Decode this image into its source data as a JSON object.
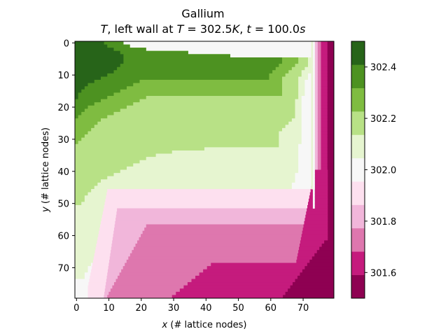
{
  "chart_data": {
    "type": "heatmap",
    "title": "Gallium",
    "subtitle": "T, left wall at T = 302.5K, t = 100.0s",
    "xlabel": "x (# lattice nodes)",
    "ylabel": "y (# lattice nodes)",
    "xlim": [
      0,
      79
    ],
    "ylim": [
      79,
      0
    ],
    "x_ticks": [
      0,
      10,
      20,
      30,
      40,
      50,
      60,
      70
    ],
    "y_ticks": [
      0,
      10,
      20,
      30,
      40,
      50,
      60,
      70
    ],
    "grid_size": [
      80,
      80
    ],
    "colorbar": {
      "levels": [
        301.5,
        301.6,
        301.7,
        301.8,
        301.9,
        302.0,
        302.1,
        302.2,
        302.3,
        302.4,
        302.5
      ],
      "colors": [
        "#8e0152",
        "#c51b7d",
        "#de77ae",
        "#f1b6da",
        "#fde0ef",
        "#f7f7f7",
        "#e6f5d0",
        "#b8e186",
        "#7fbc41",
        "#4d9221",
        "#276419"
      ],
      "tick_labels": [
        "301.6",
        "301.8",
        "302.0",
        "302.2",
        "302.4"
      ],
      "tick_values": [
        301.6,
        301.8,
        302.0,
        302.2,
        302.4
      ]
    },
    "contours": [
      {
        "level": 302.4,
        "x": [
          9,
          10,
          12,
          14,
          15,
          15,
          15,
          14,
          13,
          12,
          10,
          8,
          6,
          4,
          3,
          2,
          1,
          1
        ]
      },
      {
        "level": 302.3,
        "x": [
          15,
          17,
          22,
          35,
          48,
          64,
          64,
          63,
          62,
          61,
          60,
          60,
          20,
          18,
          16,
          14,
          12,
          10,
          8,
          6,
          4,
          3,
          2,
          1
        ]
      },
      {
        "level": 302.2,
        "x": [
          15,
          17,
          22,
          35,
          48,
          69,
          69,
          68,
          67,
          66,
          65,
          64,
          64,
          64,
          64,
          64,
          64,
          22,
          20,
          18,
          16,
          14,
          12,
          10,
          8,
          7,
          6,
          5,
          4,
          3,
          2,
          1
        ]
      },
      {
        "level": 302.1,
        "x": [
          15,
          17,
          22,
          35,
          48,
          72,
          72,
          72,
          71,
          70,
          70,
          69,
          69,
          69,
          69,
          69,
          69,
          69,
          68,
          68,
          68,
          68,
          68,
          68,
          67,
          66,
          65,
          64,
          63,
          63,
          63,
          63,
          63,
          40,
          30,
          25,
          22,
          20,
          18,
          16,
          14,
          12,
          10,
          8,
          7,
          6,
          5,
          4,
          3,
          3,
          2
        ]
      },
      {
        "level": 302.0,
        "x": [
          15,
          17,
          22,
          35,
          48,
          73,
          73,
          73,
          73,
          73,
          72,
          72,
          71,
          71,
          71,
          71,
          71,
          70,
          70,
          70,
          70,
          70,
          70,
          70,
          70,
          70,
          70,
          70,
          70,
          70,
          70,
          70,
          69,
          69,
          69,
          69,
          69,
          69,
          69,
          69,
          69,
          68,
          68,
          68,
          67,
          67,
          66,
          66,
          65,
          64,
          63,
          62,
          62,
          62,
          62,
          62,
          40,
          30,
          25,
          22,
          20,
          18,
          16,
          14,
          12,
          10,
          8,
          7,
          6,
          5,
          4,
          4,
          3,
          3
        ]
      }
    ]
  }
}
